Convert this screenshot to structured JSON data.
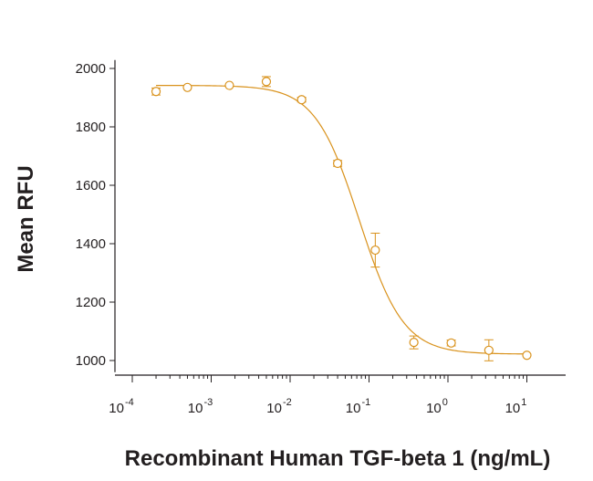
{
  "chart_data": {
    "type": "scatter",
    "title": "",
    "xlabel": "Recombinant Human TGF-beta 1 (ng/mL)",
    "ylabel": "Mean RFU",
    "xscale": "log",
    "xlim": [
      0.0001,
      30
    ],
    "ylim": [
      960,
      2010
    ],
    "grid": false,
    "color": "#d9921c",
    "x_ticks": [
      {
        "base": "10",
        "exp": "-4",
        "value": 0.0001
      },
      {
        "base": "10",
        "exp": "-3",
        "value": 0.001
      },
      {
        "base": "10",
        "exp": "-2",
        "value": 0.01
      },
      {
        "base": "10",
        "exp": "-1",
        "value": 0.1
      },
      {
        "base": "10",
        "exp": "0",
        "value": 1
      },
      {
        "base": "10",
        "exp": "1",
        "value": 10
      }
    ],
    "y_ticks": [
      1000,
      1200,
      1400,
      1600,
      1800,
      2000
    ],
    "points": [
      {
        "x": 0.0002,
        "y": 1921,
        "err": 12
      },
      {
        "x": 0.0005,
        "y": 1935,
        "err": 0
      },
      {
        "x": 0.0017,
        "y": 1942,
        "err": 0
      },
      {
        "x": 0.005,
        "y": 1955,
        "err": 17
      },
      {
        "x": 0.014,
        "y": 1893,
        "err": 8
      },
      {
        "x": 0.04,
        "y": 1675,
        "err": 10
      },
      {
        "x": 0.12,
        "y": 1378,
        "err": 58
      },
      {
        "x": 0.37,
        "y": 1062,
        "err": 22
      },
      {
        "x": 1.1,
        "y": 1060,
        "err": 10
      },
      {
        "x": 3.3,
        "y": 1035,
        "err": 36
      },
      {
        "x": 10,
        "y": 1018,
        "err": 0
      }
    ],
    "fit": {
      "model": "4PL",
      "top": 1942,
      "bottom": 1022,
      "ec50": 0.075,
      "hill": 1.55
    }
  }
}
